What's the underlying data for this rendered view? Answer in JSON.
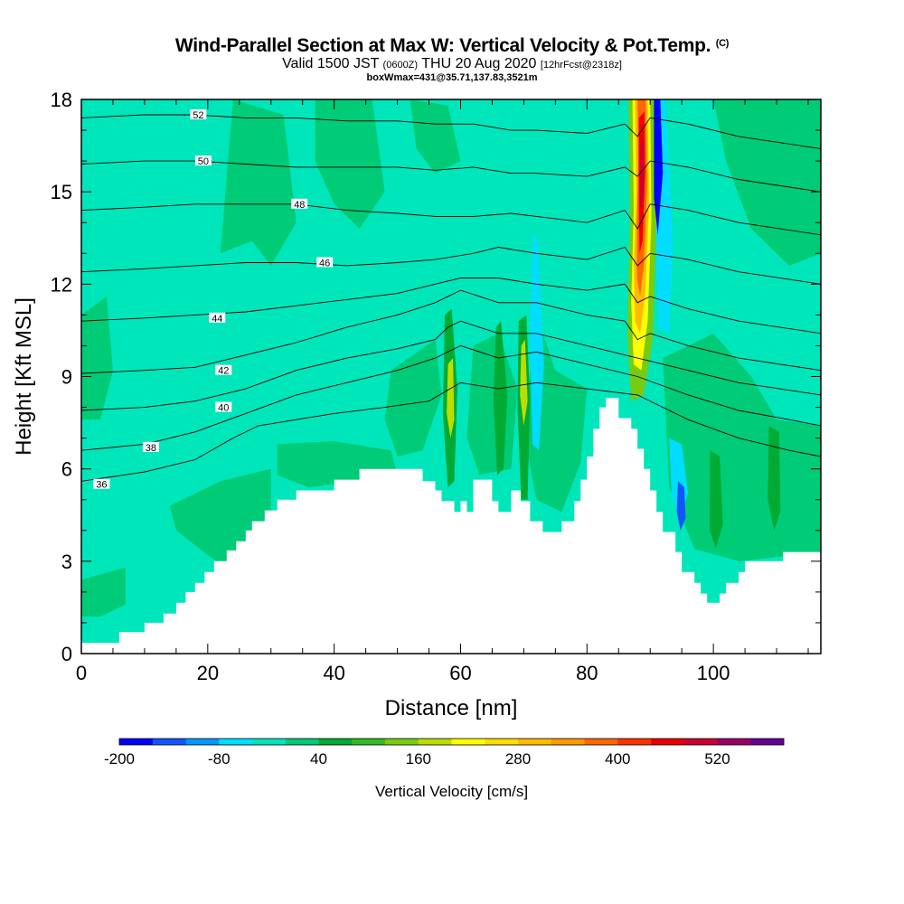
{
  "header": {
    "title": "Wind-Parallel Section at Max W: Vertical Velocity & Pot.Temp.",
    "copyright": "(C)",
    "subtitle_a": "Valid 1500 JST",
    "subtitle_b": "(0600Z)",
    "subtitle_c": "THU 20 Aug 2020",
    "subtitle_d": "[12hrFcst@2318z]",
    "subtitle2": "boxWmax=431@35.71,137.83,3521m"
  },
  "chart_data": {
    "type": "heatmap",
    "xlabel": "Distance [nm]",
    "ylabel": "Height [Kft MSL]",
    "xlim": [
      0,
      117
    ],
    "ylim": [
      0,
      18
    ],
    "x_ticks": [
      0,
      20,
      40,
      60,
      80,
      100
    ],
    "y_ticks": [
      0,
      3,
      6,
      9,
      12,
      15,
      18
    ],
    "colorbar": {
      "label": "Vertical Velocity [cm/s]",
      "tick_labels": [
        "-200",
        "-80",
        "40",
        "160",
        "280",
        "400",
        "520"
      ],
      "levels": [
        -200,
        -160,
        -120,
        -80,
        -40,
        0,
        40,
        80,
        120,
        160,
        200,
        240,
        280,
        320,
        360,
        400,
        440,
        480,
        520,
        560,
        600
      ],
      "colors": [
        "#0000ff",
        "#1155ff",
        "#0099ff",
        "#00ddff",
        "#00e6bb",
        "#00cc77",
        "#00aa33",
        "#33bb22",
        "#77cc11",
        "#bbdd00",
        "#ffff00",
        "#ffdd00",
        "#ffbb00",
        "#ff9900",
        "#ff6600",
        "#ff3300",
        "#ee0000",
        "#cc0033",
        "#990066",
        "#660099"
      ]
    },
    "terrain_profile": [
      [
        0,
        0.35
      ],
      [
        6,
        0.35
      ],
      [
        6,
        0.7
      ],
      [
        10,
        0.7
      ],
      [
        10,
        1.0
      ],
      [
        13,
        1.0
      ],
      [
        13,
        1.3
      ],
      [
        15,
        1.3
      ],
      [
        15,
        1.65
      ],
      [
        16.5,
        1.65
      ],
      [
        16.5,
        2.0
      ],
      [
        18,
        2.0
      ],
      [
        18,
        2.3
      ],
      [
        19.5,
        2.3
      ],
      [
        19.5,
        2.65
      ],
      [
        21,
        2.65
      ],
      [
        21,
        3.0
      ],
      [
        23,
        3.0
      ],
      [
        23,
        3.35
      ],
      [
        24.5,
        3.35
      ],
      [
        24.5,
        3.65
      ],
      [
        26,
        3.65
      ],
      [
        26,
        4.0
      ],
      [
        27,
        4.0
      ],
      [
        27,
        4.3
      ],
      [
        29,
        4.3
      ],
      [
        29,
        4.65
      ],
      [
        31,
        4.65
      ],
      [
        31,
        5.0
      ],
      [
        34,
        5.0
      ],
      [
        34,
        5.3
      ],
      [
        40,
        5.3
      ],
      [
        40,
        5.65
      ],
      [
        44,
        5.65
      ],
      [
        44,
        6.0
      ],
      [
        54,
        6.0
      ],
      [
        54,
        5.6
      ],
      [
        56,
        5.6
      ],
      [
        56,
        5.3
      ],
      [
        57,
        5.3
      ],
      [
        57,
        4.95
      ],
      [
        59,
        4.95
      ],
      [
        59,
        4.6
      ],
      [
        60,
        4.6
      ],
      [
        60,
        4.95
      ],
      [
        61,
        4.95
      ],
      [
        61,
        4.6
      ],
      [
        62,
        4.6
      ],
      [
        62,
        5.65
      ],
      [
        65,
        5.65
      ],
      [
        65,
        4.95
      ],
      [
        66,
        4.95
      ],
      [
        66,
        4.6
      ],
      [
        68,
        4.6
      ],
      [
        68,
        5.3
      ],
      [
        69.5,
        5.3
      ],
      [
        69.5,
        4.95
      ],
      [
        71,
        4.95
      ],
      [
        71,
        4.3
      ],
      [
        73,
        4.3
      ],
      [
        73,
        3.95
      ],
      [
        76,
        3.95
      ],
      [
        76,
        4.3
      ],
      [
        78,
        4.3
      ],
      [
        78,
        4.95
      ],
      [
        79,
        4.95
      ],
      [
        79,
        5.65
      ],
      [
        80,
        5.65
      ],
      [
        80,
        6.4
      ],
      [
        81,
        6.4
      ],
      [
        81,
        7.3
      ],
      [
        82,
        7.3
      ],
      [
        82,
        8.0
      ],
      [
        83,
        8.0
      ],
      [
        83,
        8.3
      ],
      [
        85,
        8.3
      ],
      [
        85,
        7.65
      ],
      [
        87,
        7.65
      ],
      [
        87,
        7.3
      ],
      [
        88,
        7.3
      ],
      [
        88,
        6.65
      ],
      [
        89,
        6.65
      ],
      [
        89,
        6.0
      ],
      [
        90,
        6.0
      ],
      [
        90,
        5.3
      ],
      [
        91,
        5.3
      ],
      [
        91,
        4.6
      ],
      [
        92,
        4.6
      ],
      [
        92,
        3.95
      ],
      [
        94,
        3.95
      ],
      [
        94,
        3.3
      ],
      [
        95,
        3.3
      ],
      [
        95,
        2.65
      ],
      [
        97,
        2.65
      ],
      [
        97,
        2.3
      ],
      [
        98,
        2.3
      ],
      [
        98,
        1.95
      ],
      [
        99,
        1.95
      ],
      [
        99,
        1.65
      ],
      [
        101,
        1.65
      ],
      [
        101,
        1.95
      ],
      [
        102,
        1.95
      ],
      [
        102,
        2.3
      ],
      [
        104,
        2.3
      ],
      [
        104,
        2.65
      ],
      [
        105,
        2.65
      ],
      [
        105,
        3.0
      ],
      [
        111,
        3.0
      ],
      [
        111,
        3.3
      ],
      [
        117,
        3.3
      ]
    ],
    "theta_contours": [
      {
        "label": "36",
        "label_x": 3.2,
        "label_y": 5.5,
        "points": [
          [
            0,
            5.6
          ],
          [
            10,
            5.9
          ],
          [
            18,
            6.3
          ],
          [
            24,
            7.0
          ],
          [
            28,
            7.4
          ],
          [
            34,
            7.6
          ],
          [
            40,
            7.8
          ],
          [
            48,
            8.0
          ],
          [
            55,
            8.2
          ],
          [
            60,
            8.8
          ],
          [
            66,
            8.6
          ],
          [
            72,
            8.8
          ],
          [
            80,
            8.6
          ],
          [
            88,
            8.4
          ],
          [
            96,
            7.6
          ],
          [
            104,
            7.0
          ],
          [
            112,
            6.6
          ],
          [
            117,
            6.4
          ]
        ]
      },
      {
        "label": "38",
        "label_x": 11,
        "label_y": 6.7,
        "points": [
          [
            0,
            6.6
          ],
          [
            10,
            6.8
          ],
          [
            18,
            7.2
          ],
          [
            26,
            7.8
          ],
          [
            34,
            8.4
          ],
          [
            42,
            8.8
          ],
          [
            50,
            9.2
          ],
          [
            56,
            9.6
          ],
          [
            60,
            10.0
          ],
          [
            66,
            9.6
          ],
          [
            72,
            9.8
          ],
          [
            80,
            9.4
          ],
          [
            88,
            9.0
          ],
          [
            96,
            8.4
          ],
          [
            104,
            7.9
          ],
          [
            112,
            7.6
          ],
          [
            117,
            7.4
          ]
        ]
      },
      {
        "label": "40",
        "label_x": 22.5,
        "label_y": 8.0,
        "points": [
          [
            0,
            7.9
          ],
          [
            10,
            8.0
          ],
          [
            18,
            8.2
          ],
          [
            26,
            8.6
          ],
          [
            34,
            9.2
          ],
          [
            42,
            9.6
          ],
          [
            50,
            9.9
          ],
          [
            56,
            10.2
          ],
          [
            58,
            10.6
          ],
          [
            60,
            10.8
          ],
          [
            66,
            10.4
          ],
          [
            72,
            10.4
          ],
          [
            80,
            10.0
          ],
          [
            88,
            9.6
          ],
          [
            96,
            9.2
          ],
          [
            104,
            8.8
          ],
          [
            117,
            8.4
          ]
        ]
      },
      {
        "label": "42",
        "label_x": 22.5,
        "label_y": 9.2,
        "points": [
          [
            0,
            9.1
          ],
          [
            10,
            9.2
          ],
          [
            18,
            9.3
          ],
          [
            26,
            9.7
          ],
          [
            34,
            10.1
          ],
          [
            42,
            10.6
          ],
          [
            50,
            11.0
          ],
          [
            56,
            11.4
          ],
          [
            60,
            11.8
          ],
          [
            66,
            11.4
          ],
          [
            72,
            11.4
          ],
          [
            80,
            11.0
          ],
          [
            86,
            10.8
          ],
          [
            88,
            10.2
          ],
          [
            90,
            10.4
          ],
          [
            96,
            10.0
          ],
          [
            104,
            9.6
          ],
          [
            117,
            9.2
          ]
        ]
      },
      {
        "label": "44",
        "label_x": 21.5,
        "label_y": 10.9,
        "points": [
          [
            0,
            10.8
          ],
          [
            10,
            10.9
          ],
          [
            18,
            11.0
          ],
          [
            26,
            11.1
          ],
          [
            34,
            11.3
          ],
          [
            42,
            11.5
          ],
          [
            50,
            11.7
          ],
          [
            56,
            12.0
          ],
          [
            60,
            12.2
          ],
          [
            66,
            12.2
          ],
          [
            72,
            12.0
          ],
          [
            80,
            11.8
          ],
          [
            86,
            12.0
          ],
          [
            88,
            11.4
          ],
          [
            90,
            11.6
          ],
          [
            96,
            11.2
          ],
          [
            104,
            10.8
          ],
          [
            117,
            10.4
          ]
        ]
      },
      {
        "label": "46",
        "label_x": 38.5,
        "label_y": 12.7,
        "points": [
          [
            0,
            12.4
          ],
          [
            10,
            12.5
          ],
          [
            18,
            12.6
          ],
          [
            26,
            12.7
          ],
          [
            34,
            12.7
          ],
          [
            42,
            12.6
          ],
          [
            50,
            12.7
          ],
          [
            56,
            12.8
          ],
          [
            62,
            13.0
          ],
          [
            66,
            13.2
          ],
          [
            72,
            13.0
          ],
          [
            80,
            12.8
          ],
          [
            86,
            13.2
          ],
          [
            88,
            12.6
          ],
          [
            90,
            13.0
          ],
          [
            96,
            12.8
          ],
          [
            104,
            12.4
          ],
          [
            117,
            12.0
          ]
        ]
      },
      {
        "label": "48",
        "label_x": 34.5,
        "label_y": 14.6,
        "points": [
          [
            0,
            14.4
          ],
          [
            10,
            14.5
          ],
          [
            18,
            14.6
          ],
          [
            26,
            14.6
          ],
          [
            34,
            14.6
          ],
          [
            42,
            14.4
          ],
          [
            50,
            14.3
          ],
          [
            56,
            14.2
          ],
          [
            62,
            14.2
          ],
          [
            68,
            14.3
          ],
          [
            72,
            14.2
          ],
          [
            80,
            14.0
          ],
          [
            86,
            14.4
          ],
          [
            88,
            13.8
          ],
          [
            90,
            14.6
          ],
          [
            96,
            14.4
          ],
          [
            104,
            14.0
          ],
          [
            117,
            13.6
          ]
        ]
      },
      {
        "label": "50",
        "label_x": 19.3,
        "label_y": 16.0,
        "points": [
          [
            0,
            15.9
          ],
          [
            10,
            16.0
          ],
          [
            18,
            16.0
          ],
          [
            26,
            15.9
          ],
          [
            34,
            15.8
          ],
          [
            42,
            15.8
          ],
          [
            50,
            15.8
          ],
          [
            56,
            15.7
          ],
          [
            62,
            15.8
          ],
          [
            68,
            15.6
          ],
          [
            72,
            15.6
          ],
          [
            80,
            15.5
          ],
          [
            86,
            15.8
          ],
          [
            88,
            15.5
          ],
          [
            90,
            16.0
          ],
          [
            96,
            15.8
          ],
          [
            104,
            15.4
          ],
          [
            117,
            15.0
          ]
        ]
      },
      {
        "label": "52",
        "label_x": 18.5,
        "label_y": 17.5,
        "points": [
          [
            0,
            17.4
          ],
          [
            10,
            17.5
          ],
          [
            18,
            17.5
          ],
          [
            26,
            17.4
          ],
          [
            34,
            17.4
          ],
          [
            42,
            17.3
          ],
          [
            50,
            17.3
          ],
          [
            56,
            17.2
          ],
          [
            62,
            17.2
          ],
          [
            68,
            17.0
          ],
          [
            72,
            17.0
          ],
          [
            80,
            16.9
          ],
          [
            86,
            17.2
          ],
          [
            88,
            16.8
          ],
          [
            90,
            17.4
          ],
          [
            96,
            17.2
          ],
          [
            104,
            16.8
          ],
          [
            117,
            16.4
          ]
        ]
      }
    ]
  }
}
